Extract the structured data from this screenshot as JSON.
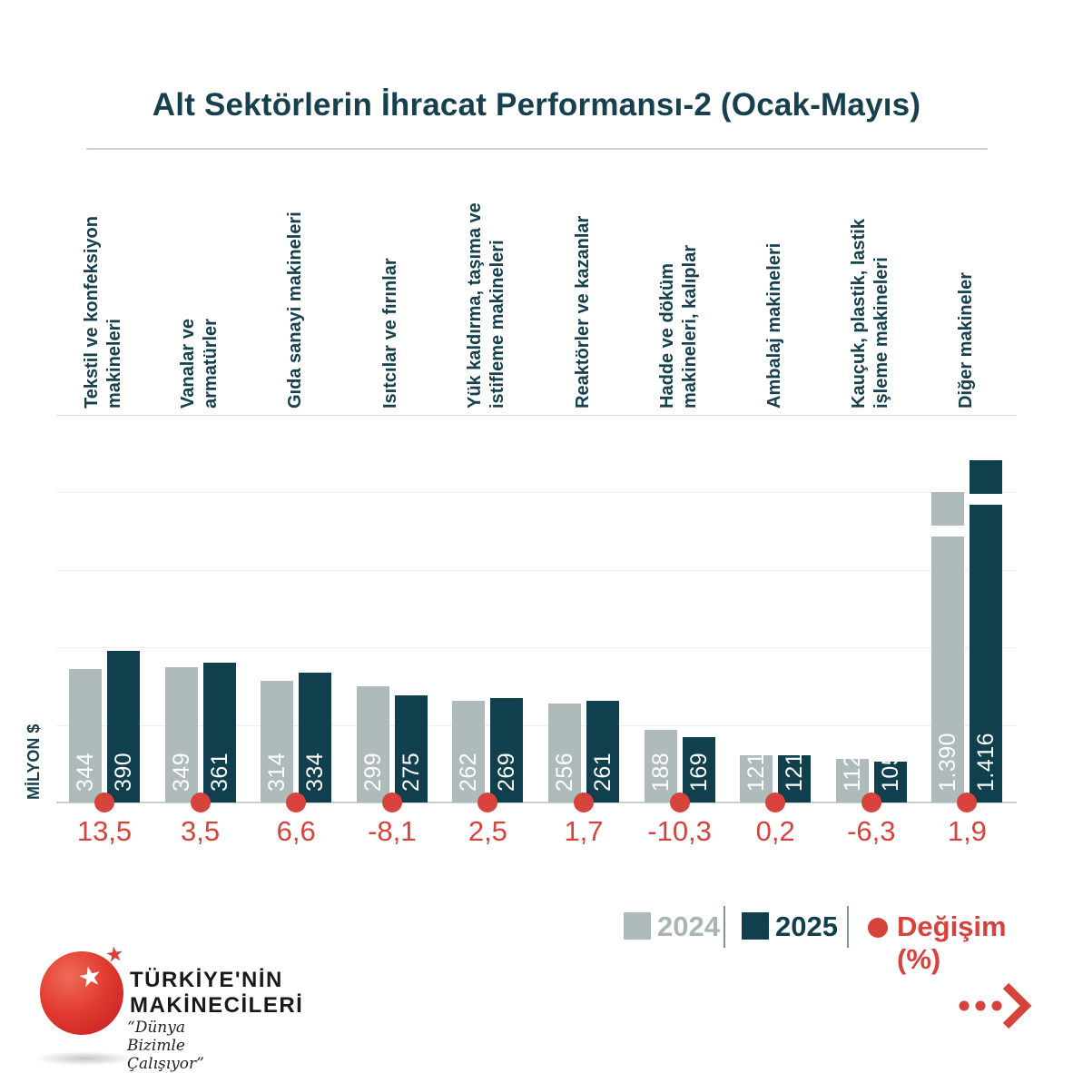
{
  "header": {
    "title": "Alt Sektörlerin İhracat Performansı-2 (Ocak-Mayıs)"
  },
  "y_axis": {
    "label": "MİLYON $"
  },
  "legend": {
    "series_2024": "2024",
    "series_2025": "2025",
    "change_label": "Değişim (%)"
  },
  "colors": {
    "series_2024": "#afbaba",
    "series_2025": "#103f4e",
    "accent_red": "#d8423c",
    "heading_teal": "#16404e",
    "legend_2024_text": "#a9b5b5"
  },
  "footer": {
    "brand_line1": "TÜRKİYE'NİN",
    "brand_line2": "MAKİNECİLERİ",
    "tagline": "“Dünya Bizimle Çalışıyor”"
  },
  "chart_data": {
    "type": "bar",
    "title": "Alt Sektörlerin İhracat Performansı-2 (Ocak-Mayıs)",
    "xlabel": "",
    "ylabel": "MİLYON $",
    "ylim": [
      0,
      1000
    ],
    "gridline_step": 200,
    "grid": true,
    "legend_position": "bottom-right",
    "categories": [
      "Tekstil ve konfeksiyon makineleri",
      "Vanalar ve armatürler",
      "Gıda sanayi makineleri",
      "Isıtcılar ve fırınlar",
      "Yük kaldırma, taşıma ve istifleme makineleri",
      "Reaktörler ve kazanlar",
      "Hadde ve döküm makineleri, kalıplar",
      "Ambalaj makineleri",
      "Kauçuk, plastik, lastik işleme makineleri",
      "Diğer makineler"
    ],
    "category_label_lines": [
      [
        "Tekstil ve konfeksiyon",
        "makineleri"
      ],
      [
        "Vanalar ve",
        "armatürler"
      ],
      [
        "Gıda sanayi makineleri"
      ],
      [
        "Isıtcılar ve fırınlar"
      ],
      [
        "Yük kaldırma, taşıma ve",
        "istifleme makineleri"
      ],
      [
        "Reaktörler ve kazanlar"
      ],
      [
        "Hadde ve döküm",
        "makineleri, kalıplar"
      ],
      [
        "Ambalaj makineleri"
      ],
      [
        "Kauçuk, plastik, lastik",
        "işleme makineleri"
      ],
      [
        "Diğer makineler"
      ]
    ],
    "series": [
      {
        "name": "2024",
        "values": [
          344,
          349,
          314,
          299,
          262,
          256,
          188,
          121,
          112,
          1390
        ],
        "labels": [
          "344",
          "349",
          "314",
          "299",
          "262",
          "256",
          "188",
          "121",
          "112",
          "1.390"
        ]
      },
      {
        "name": "2025",
        "values": [
          390,
          361,
          334,
          275,
          269,
          261,
          169,
          121,
          105,
          1416
        ],
        "labels": [
          "390",
          "361",
          "334",
          "275",
          "269",
          "261",
          "169",
          "121",
          "105",
          "1.416"
        ]
      }
    ],
    "change_percent": [
      13.5,
      3.5,
      6.6,
      -8.1,
      2.5,
      1.7,
      -10.3,
      0.2,
      -6.3,
      1.9
    ],
    "change_percent_labels": [
      "13,5",
      "3,5",
      "6,6",
      "-8,1",
      "2,5",
      "1,7",
      "-10,3",
      "0,2",
      "-6,3",
      "1,9"
    ],
    "axis_break": {
      "applied_to": [
        "Diğer makineler"
      ],
      "note": "bars above 1000 drawn truncated with a white break"
    }
  }
}
